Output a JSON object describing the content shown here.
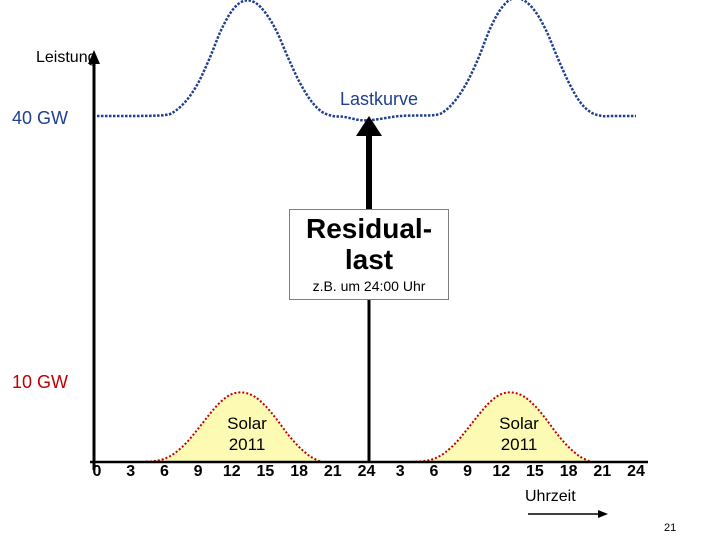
{
  "chart_data": {
    "type": "line",
    "ylabel": "Leistung",
    "xlabel": "Uhrzeit",
    "y_ticks": [
      {
        "label": "40 GW",
        "value": 40
      },
      {
        "label": "10 GW",
        "value": 10
      }
    ],
    "x_tick_labels": [
      "0",
      "3",
      "6",
      "9",
      "12",
      "15",
      "18",
      "21",
      "24",
      "3",
      "6",
      "9",
      "12",
      "15",
      "18",
      "21",
      "24"
    ],
    "x_range_hours": [
      0,
      48
    ],
    "series": [
      {
        "name": "Lastkurve",
        "color": "#1f3f8f",
        "x": [
          0,
          3,
          6,
          7,
          8,
          9,
          10,
          11,
          12,
          13,
          14,
          15,
          16,
          17,
          18,
          19,
          20,
          21,
          22,
          24,
          27,
          30,
          31,
          32,
          33,
          34,
          35,
          36,
          37,
          38,
          39,
          40,
          41,
          42,
          43,
          44,
          45,
          46,
          48
        ],
        "values": [
          40,
          40,
          40.1,
          40.6,
          41.8,
          43.7,
          46.4,
          49.5,
          51.8,
          52.9,
          52.8,
          51.6,
          49.5,
          46.6,
          43.9,
          41.8,
          40.5,
          40,
          39.9,
          39.5,
          40,
          40.1,
          40.6,
          41.9,
          43.9,
          46.6,
          49.8,
          52.1,
          53.2,
          53,
          51.8,
          49.6,
          46.6,
          43.8,
          41.6,
          40.4,
          40,
          40,
          40
        ]
      },
      {
        "name": "Solar 2011",
        "color": "#fdfab4",
        "x": [
          0,
          4,
          5,
          6,
          7,
          8,
          9,
          10,
          11,
          12,
          13,
          14,
          15,
          16,
          17,
          18,
          19,
          20,
          24,
          28,
          29,
          30,
          31,
          32,
          33,
          34,
          35,
          36,
          37,
          38,
          39,
          40,
          41,
          42,
          43,
          44,
          48
        ],
        "values": [
          0,
          0,
          0.1,
          0.4,
          1.2,
          2.5,
          4.2,
          6,
          7.6,
          8.6,
          8.8,
          8.3,
          7.1,
          5.4,
          3.5,
          1.9,
          0.7,
          0,
          0,
          0,
          0.1,
          0.4,
          1.2,
          2.5,
          4.2,
          6,
          7.6,
          8.6,
          8.8,
          8.3,
          7.1,
          5.4,
          3.5,
          1.9,
          0.7,
          0,
          0
        ]
      }
    ],
    "annotations": {
      "load_curve": "Lastkurve",
      "residual_title": "Residual-\nlast",
      "residual_note": "z.B. um 24:00 Uhr",
      "solar_label": "Solar\n2011",
      "residual_at_hour": 24
    },
    "grid": false,
    "legend": "none"
  },
  "page_number": "21"
}
